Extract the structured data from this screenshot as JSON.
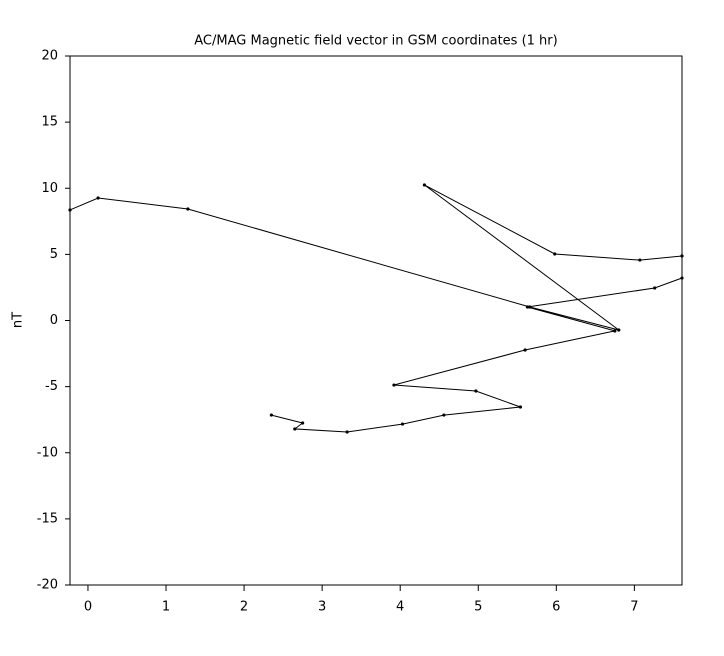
{
  "chart_data": {
    "type": "line",
    "title": "AC/MAG  Magnetic field vector in GSM coordinates (1 hr)",
    "y_label": "nT",
    "x": [
      -0.23,
      0.13,
      1.28,
      5.66,
      6.8,
      4.31,
      5.98,
      7.07,
      7.61,
      null,
      7.61,
      7.26,
      5.63,
      6.75,
      5.6,
      3.92,
      4.97,
      5.54,
      4.56,
      4.03,
      3.32,
      2.65,
      2.75,
      2.35
    ],
    "series": [
      {
        "color": "#000000",
        "values": [
          8.36,
          9.26,
          8.43,
          1.02,
          -0.72,
          10.25,
          5.03,
          4.57,
          4.88,
          null,
          3.21,
          2.46,
          1.02,
          -0.79,
          -2.23,
          -4.88,
          -5.33,
          -6.54,
          -7.15,
          -7.83,
          -8.43,
          -8.2,
          -7.75,
          -7.15
        ]
      }
    ],
    "xlim": [
      -0.23,
      7.61
    ],
    "ylim": [
      -20,
      20
    ],
    "xticks": [
      0,
      1,
      2,
      3,
      4,
      5,
      6,
      7
    ],
    "yticks": [
      -20,
      -15,
      -10,
      -5,
      0,
      5,
      10,
      15,
      20
    ]
  }
}
